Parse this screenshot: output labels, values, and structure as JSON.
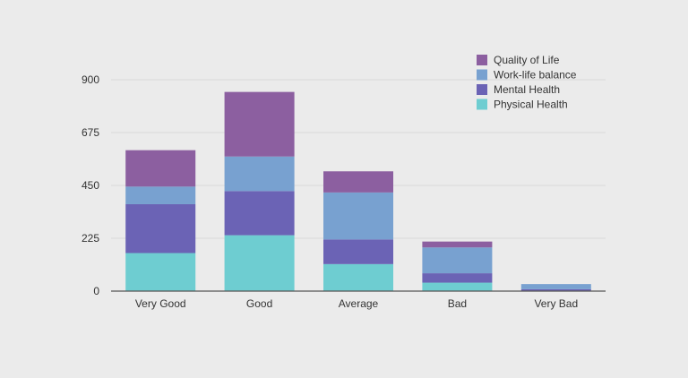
{
  "chart_data": {
    "type": "bar",
    "stacked": true,
    "categories": [
      "Very Good",
      "Good",
      "Average",
      "Bad",
      "Very Bad"
    ],
    "series": [
      {
        "name": "Physical Health",
        "color": "#6ecdd1",
        "values": [
          162,
          238,
          115,
          36,
          0
        ]
      },
      {
        "name": "Mental Health",
        "color": "#6b63b5",
        "values": [
          208,
          188,
          105,
          40,
          8
        ]
      },
      {
        "name": "Work-life balance",
        "color": "#78a1d0",
        "values": [
          75,
          147,
          200,
          110,
          22
        ]
      },
      {
        "name": "Quality of Life",
        "color": "#8c5fa0",
        "values": [
          155,
          275,
          90,
          25,
          0
        ]
      }
    ],
    "yticks": [
      0,
      225,
      450,
      675,
      900
    ],
    "ylim": [
      0,
      900
    ],
    "grid": true,
    "legend": "top-right",
    "legend_order": [
      "Quality of Life",
      "Work-life balance",
      "Mental Health",
      "Physical Health"
    ]
  }
}
